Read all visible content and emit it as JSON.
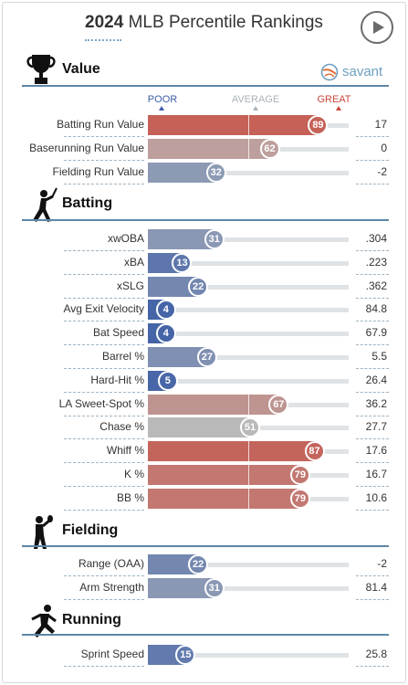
{
  "title": {
    "year": "2024",
    "text": "MLB Percentile Rankings"
  },
  "brand": {
    "name": "savant"
  },
  "scale": {
    "poor": "POOR",
    "average": "AVERAGE",
    "great": "GREAT"
  },
  "colors": {
    "poor": "#3c5ea6",
    "great": "#c8473b",
    "average": "#b9bbbc",
    "section_line": "#5c86a6"
  },
  "sections": [
    {
      "key": "value",
      "title": "Value",
      "icon": "trophy-icon",
      "metrics": [
        {
          "name": "Batting Run Value",
          "percentile": 89,
          "value": "17"
        },
        {
          "name": "Baserunning Run Value",
          "percentile": 62,
          "value": "0"
        },
        {
          "name": "Fielding Run Value",
          "percentile": 32,
          "value": "-2"
        }
      ]
    },
    {
      "key": "batting",
      "title": "Batting",
      "icon": "batter-icon",
      "metrics": [
        {
          "name": "xwOBA",
          "percentile": 31,
          "value": ".304"
        },
        {
          "name": "xBA",
          "percentile": 13,
          "value": ".223"
        },
        {
          "name": "xSLG",
          "percentile": 22,
          "value": ".362"
        },
        {
          "name": "Avg Exit Velocity",
          "percentile": 4,
          "value": "84.8"
        },
        {
          "name": "Bat Speed",
          "percentile": 4,
          "value": "67.9"
        },
        {
          "name": "Barrel %",
          "percentile": 27,
          "value": "5.5"
        },
        {
          "name": "Hard-Hit %",
          "percentile": 5,
          "value": "26.4"
        },
        {
          "name": "LA Sweet-Spot %",
          "percentile": 67,
          "value": "36.2"
        },
        {
          "name": "Chase %",
          "percentile": 51,
          "value": "27.7"
        },
        {
          "name": "Whiff %",
          "percentile": 87,
          "value": "17.6"
        },
        {
          "name": "K %",
          "percentile": 79,
          "value": "16.7"
        },
        {
          "name": "BB %",
          "percentile": 79,
          "value": "10.6"
        }
      ]
    },
    {
      "key": "fielding",
      "title": "Fielding",
      "icon": "fielder-icon",
      "metrics": [
        {
          "name": "Range (OAA)",
          "percentile": 22,
          "value": "-2"
        },
        {
          "name": "Arm Strength",
          "percentile": 31,
          "value": "81.4"
        }
      ]
    },
    {
      "key": "running",
      "title": "Running",
      "icon": "runner-icon",
      "metrics": [
        {
          "name": "Sprint Speed",
          "percentile": 15,
          "value": "25.8"
        }
      ]
    }
  ]
}
